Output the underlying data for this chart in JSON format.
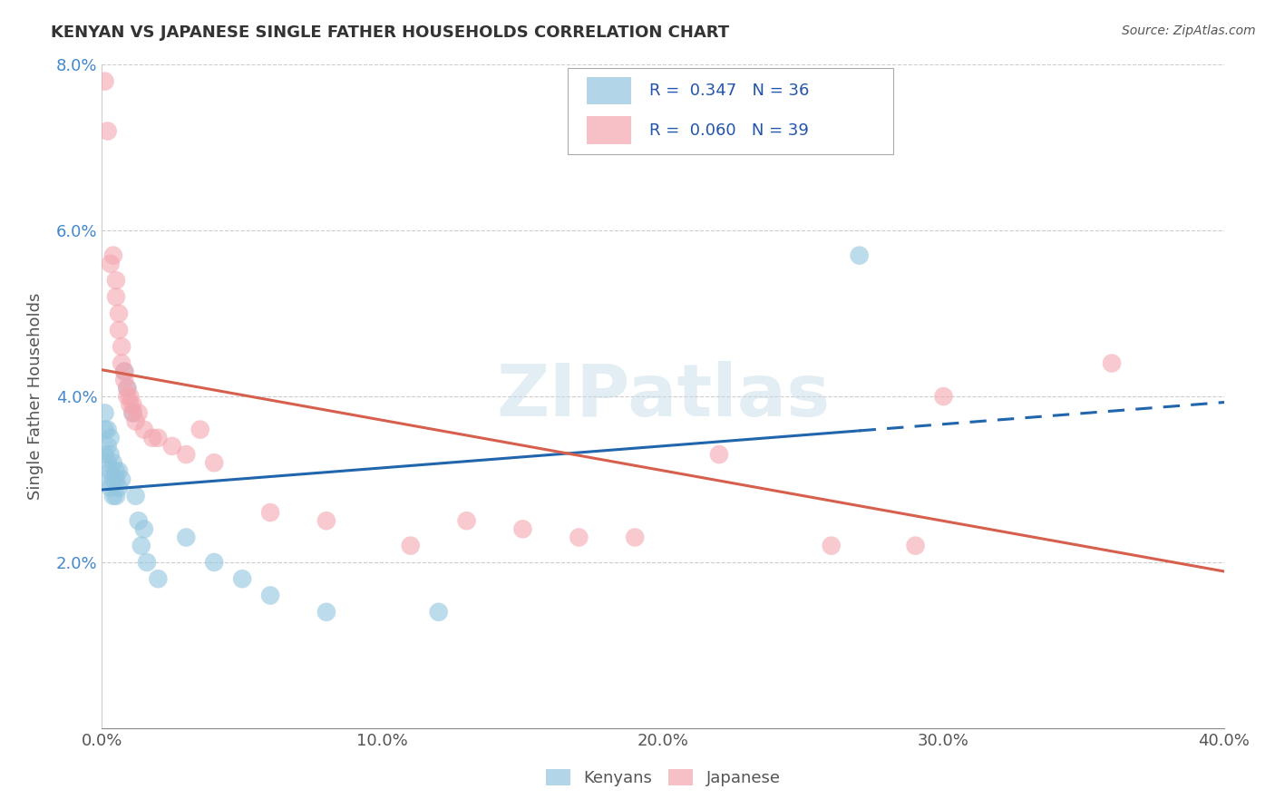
{
  "title": "KENYAN VS JAPANESE SINGLE FATHER HOUSEHOLDS CORRELATION CHART",
  "source": "Source: ZipAtlas.com",
  "ylabel": "Single Father Households",
  "xlim": [
    0.0,
    0.4
  ],
  "ylim": [
    0.0,
    0.08
  ],
  "xticks": [
    0.0,
    0.1,
    0.2,
    0.3,
    0.4
  ],
  "xtick_labels": [
    "0.0%",
    "10.0%",
    "20.0%",
    "30.0%",
    "40.0%"
  ],
  "yticks": [
    0.02,
    0.04,
    0.06,
    0.08
  ],
  "ytick_labels": [
    "2.0%",
    "4.0%",
    "6.0%",
    "8.0%"
  ],
  "kenyan_color": "#92c5de",
  "japanese_color": "#f4a6b0",
  "kenyan_line_color": "#2166ac",
  "japanese_line_color": "#d6604d",
  "kenyan_R": 0.347,
  "kenyan_N": 36,
  "japanese_R": 0.06,
  "japanese_N": 39,
  "background_color": "#ffffff",
  "grid_color": "#cccccc",
  "kenyan_points": [
    [
      0.001,
      0.033
    ],
    [
      0.001,
      0.036
    ],
    [
      0.001,
      0.038
    ],
    [
      0.002,
      0.03
    ],
    [
      0.002,
      0.032
    ],
    [
      0.002,
      0.034
    ],
    [
      0.002,
      0.036
    ],
    [
      0.003,
      0.029
    ],
    [
      0.003,
      0.031
    ],
    [
      0.003,
      0.033
    ],
    [
      0.003,
      0.035
    ],
    [
      0.004,
      0.028
    ],
    [
      0.004,
      0.03
    ],
    [
      0.004,
      0.032
    ],
    [
      0.005,
      0.028
    ],
    [
      0.005,
      0.03
    ],
    [
      0.005,
      0.031
    ],
    [
      0.006,
      0.029
    ],
    [
      0.006,
      0.031
    ],
    [
      0.007,
      0.03
    ],
    [
      0.008,
      0.043
    ],
    [
      0.009,
      0.041
    ],
    [
      0.011,
      0.038
    ],
    [
      0.012,
      0.028
    ],
    [
      0.013,
      0.025
    ],
    [
      0.014,
      0.022
    ],
    [
      0.015,
      0.024
    ],
    [
      0.016,
      0.02
    ],
    [
      0.02,
      0.018
    ],
    [
      0.03,
      0.023
    ],
    [
      0.04,
      0.02
    ],
    [
      0.05,
      0.018
    ],
    [
      0.06,
      0.016
    ],
    [
      0.08,
      0.014
    ],
    [
      0.12,
      0.014
    ],
    [
      0.27,
      0.057
    ]
  ],
  "japanese_points": [
    [
      0.001,
      0.078
    ],
    [
      0.002,
      0.072
    ],
    [
      0.003,
      0.056
    ],
    [
      0.004,
      0.057
    ],
    [
      0.005,
      0.054
    ],
    [
      0.005,
      0.052
    ],
    [
      0.006,
      0.048
    ],
    [
      0.006,
      0.05
    ],
    [
      0.007,
      0.046
    ],
    [
      0.007,
      0.044
    ],
    [
      0.008,
      0.042
    ],
    [
      0.008,
      0.043
    ],
    [
      0.009,
      0.04
    ],
    [
      0.009,
      0.041
    ],
    [
      0.01,
      0.039
    ],
    [
      0.01,
      0.04
    ],
    [
      0.011,
      0.038
    ],
    [
      0.011,
      0.039
    ],
    [
      0.012,
      0.037
    ],
    [
      0.013,
      0.038
    ],
    [
      0.015,
      0.036
    ],
    [
      0.018,
      0.035
    ],
    [
      0.02,
      0.035
    ],
    [
      0.025,
      0.034
    ],
    [
      0.03,
      0.033
    ],
    [
      0.035,
      0.036
    ],
    [
      0.04,
      0.032
    ],
    [
      0.06,
      0.026
    ],
    [
      0.08,
      0.025
    ],
    [
      0.11,
      0.022
    ],
    [
      0.13,
      0.025
    ],
    [
      0.15,
      0.024
    ],
    [
      0.17,
      0.023
    ],
    [
      0.19,
      0.023
    ],
    [
      0.22,
      0.033
    ],
    [
      0.26,
      0.022
    ],
    [
      0.29,
      0.022
    ],
    [
      0.3,
      0.04
    ],
    [
      0.36,
      0.044
    ]
  ]
}
